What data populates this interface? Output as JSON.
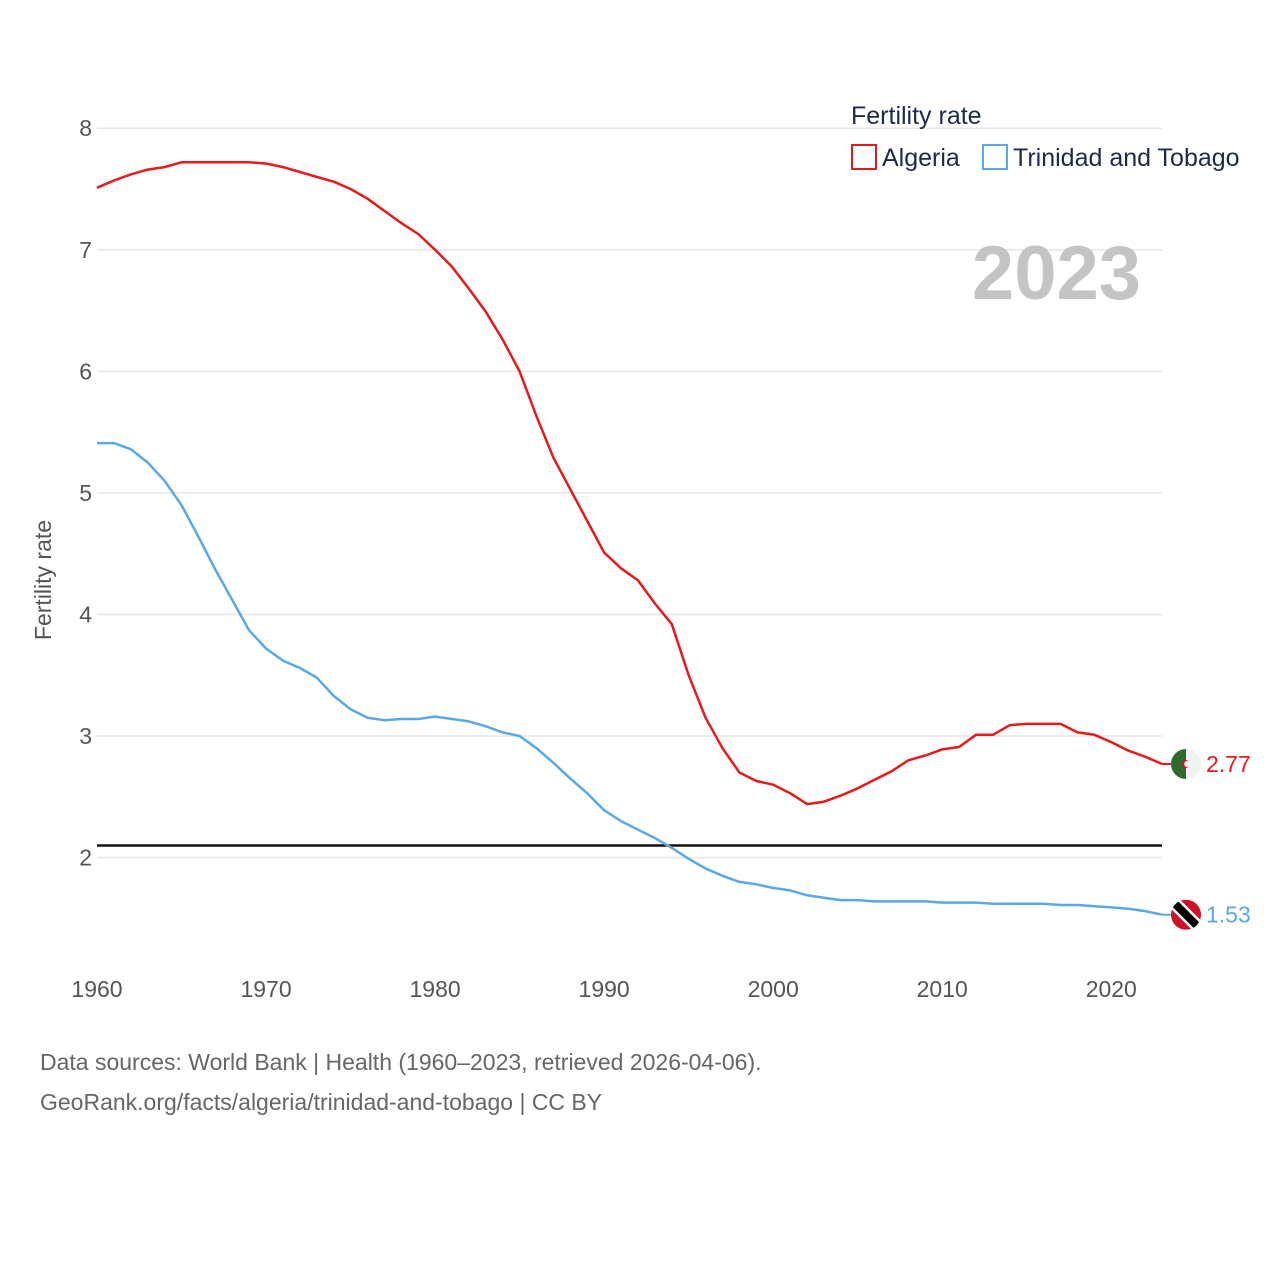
{
  "chart_data": {
    "type": "line",
    "title": "",
    "xlabel": "",
    "ylabel": "Fertility rate",
    "year_display": "2023",
    "xlim": [
      1960,
      2023
    ],
    "ylim": [
      1.1,
      8.15
    ],
    "yticks": [
      2,
      3,
      4,
      5,
      6,
      7,
      8
    ],
    "xticks": [
      1960,
      1970,
      1980,
      1990,
      2000,
      2010,
      2020
    ],
    "reference_line": 2.1,
    "legend": {
      "title": "Fertility rate",
      "position": "top-right"
    },
    "x": [
      1960,
      1961,
      1962,
      1963,
      1964,
      1965,
      1966,
      1967,
      1968,
      1969,
      1970,
      1971,
      1972,
      1973,
      1974,
      1975,
      1976,
      1977,
      1978,
      1979,
      1980,
      1981,
      1982,
      1983,
      1984,
      1985,
      1986,
      1987,
      1988,
      1989,
      1990,
      1991,
      1992,
      1993,
      1994,
      1995,
      1996,
      1997,
      1998,
      1999,
      2000,
      2001,
      2002,
      2003,
      2004,
      2005,
      2006,
      2007,
      2008,
      2009,
      2010,
      2011,
      2012,
      2013,
      2014,
      2015,
      2016,
      2017,
      2018,
      2019,
      2020,
      2021,
      2022,
      2023
    ],
    "series": [
      {
        "name": "Algeria",
        "color": "#e8191c",
        "end_label": "2.77",
        "flag_icon": "algeria-flag-icon",
        "values": [
          7.51,
          7.57,
          7.62,
          7.66,
          7.68,
          7.72,
          7.72,
          7.72,
          7.72,
          7.72,
          7.71,
          7.68,
          7.64,
          7.6,
          7.56,
          7.5,
          7.42,
          7.32,
          7.22,
          7.13,
          7.0,
          6.86,
          6.68,
          6.49,
          6.26,
          6.0,
          5.63,
          5.29,
          5.03,
          4.77,
          4.51,
          4.38,
          4.28,
          4.09,
          3.92,
          3.5,
          3.15,
          2.9,
          2.7,
          2.63,
          2.6,
          2.53,
          2.44,
          2.46,
          2.51,
          2.57,
          2.64,
          2.71,
          2.8,
          2.84,
          2.89,
          2.91,
          3.01,
          3.01,
          3.09,
          3.1,
          3.1,
          3.1,
          3.03,
          3.01,
          2.95,
          2.88,
          2.83,
          2.77
        ]
      },
      {
        "name": "Trinidad and Tobago",
        "color": "#5ba8e6",
        "end_label": "1.53",
        "flag_icon": "trinidad-flag-icon",
        "values": [
          5.41,
          5.41,
          5.36,
          5.25,
          5.1,
          4.9,
          4.64,
          4.37,
          4.12,
          3.87,
          3.72,
          3.62,
          3.56,
          3.48,
          3.33,
          3.22,
          3.15,
          3.13,
          3.14,
          3.14,
          3.16,
          3.14,
          3.12,
          3.08,
          3.03,
          3.0,
          2.9,
          2.78,
          2.65,
          2.53,
          2.39,
          2.3,
          2.23,
          2.16,
          2.08,
          1.99,
          1.91,
          1.85,
          1.8,
          1.78,
          1.75,
          1.73,
          1.69,
          1.67,
          1.65,
          1.65,
          1.64,
          1.64,
          1.64,
          1.64,
          1.63,
          1.63,
          1.63,
          1.62,
          1.62,
          1.62,
          1.62,
          1.61,
          1.61,
          1.6,
          1.59,
          1.58,
          1.56,
          1.53
        ]
      }
    ]
  },
  "footer": {
    "line1": "Data sources: World Bank | Health (1960–2023, retrieved 2026-04-06).",
    "line2": "GeoRank.org/facts/algeria/trinidad-and-tobago | CC BY"
  }
}
